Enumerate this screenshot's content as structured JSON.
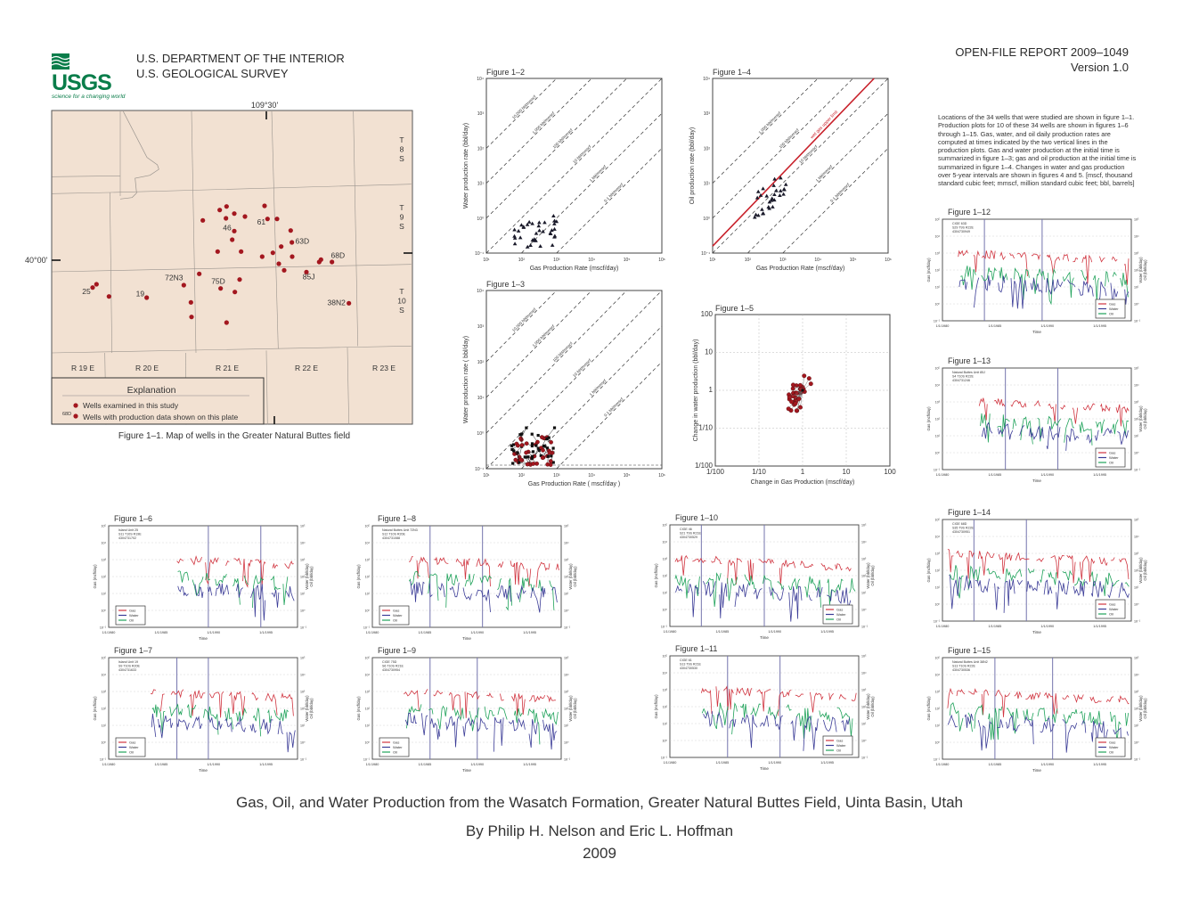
{
  "header": {
    "logo_text": "USGS",
    "logo_tagline": "science for a changing world",
    "agency_line1": "U.S. DEPARTMENT OF THE INTERIOR",
    "agency_line2": "U.S. GEOLOGICAL SURVEY",
    "report_number": "OPEN-FILE REPORT 2009–1049",
    "version": "Version 1.0"
  },
  "intro_text": "Locations of the 34 wells that were studied are shown in figure 1–1. Production plots for 10 of these 34 wells are shown in figures 1–6 through 1–15. Gas, water, and oil daily production rates are computed at times indicated by the two vertical lines in the production plots. Gas and water production at the initial time is summarized in figure 1–3; gas and oil production at the initial time is summarized in figure 1–4. Changes in water and gas production over 5-year intervals are shown in figures 4 and 5. [mscf, thousand standard cubic feet; mmscf, million standard cubic feet; bbl, barrels]",
  "map": {
    "caption": "Figure 1–1.  Map of wells in the Greater Natural Buttes field",
    "longitude_label": "109°30'",
    "latitude_label": "40°00'",
    "townships": [
      "T\n8\nS",
      "T\n9\nS",
      "T\n10\nS"
    ],
    "ranges": [
      "R 19 E",
      "R 20 E",
      "R 21 E",
      "R 22 E",
      "R 23 E"
    ],
    "well_labels": [
      "25",
      "19",
      "72N3",
      "75D",
      "46",
      "61",
      "63D",
      "68D",
      "85J",
      "38N2"
    ],
    "explanation": {
      "title": "Explanation",
      "item1": "Wells examined in this study",
      "item2": "Wells with production data shown on this plate",
      "symbol_label": "68D"
    },
    "colors": {
      "background": "#f2e1d2",
      "well": "#a3171f",
      "lines": "#9a948e"
    }
  },
  "scatter": {
    "fig2": {
      "title": "Figure 1–2",
      "xlabel": "Gas Production Rate (mscf/day)",
      "ylabel": "Water production rate (bbl/day)",
      "xticks": [
        "10¹",
        "10²",
        "10³",
        "10⁴",
        "10⁵",
        "10⁶"
      ],
      "yticks": [
        "10⁴",
        "10³",
        "10²",
        "10¹",
        "10⁰",
        "10⁻¹"
      ],
      "ratio_labels": [
        "10,000 bbl/mmscf",
        "1,000 bbl/mmscf",
        "100 bbl/mmscf",
        "10 bbl/mmscf",
        "1 bbl/mmscf",
        "0.1 bbl/mmscf"
      ]
    },
    "fig3": {
      "title": "Figure 1–3",
      "xlabel": "Gas Production Rate ( mscf/day )",
      "ylabel": "Water production rate ( bbl/day)",
      "xticks": [
        "10¹",
        "10²",
        "10³",
        "10⁴",
        "10⁵",
        "10⁶"
      ],
      "yticks": [
        "10⁴",
        "10³",
        "10²",
        "10¹",
        "10⁰",
        "10⁻¹"
      ],
      "ratio_labels": [
        "10,000 bbl/mmscf",
        "1,000 bbl/mmscf",
        "100 bbl/mmscf",
        "10 bbl/mmscf",
        "1 bbl/mmscf",
        "0.1 bbl/mmscf"
      ]
    },
    "fig4": {
      "title": "Figure 1–4",
      "xlabel": "Gas Production Rate (mscf/day)",
      "ylabel": "Oil production rate (bbl/day)",
      "xticks": [
        "10¹",
        "10²",
        "10³",
        "10⁴",
        "10⁵",
        "10⁶"
      ],
      "yticks": [
        "10⁴",
        "10³",
        "10²",
        "10¹",
        "10⁰",
        "10⁻¹"
      ],
      "ratio_labels": [
        "1,000 bbl/mmscf",
        "100 bbl/mmscf",
        "10 bbl/mmscf",
        "1 bbl/mmscf",
        "0.1 bbl/mmscf"
      ],
      "limit_label": "wet gas upper limit"
    },
    "fig5": {
      "title": "Figure 1–5",
      "xlabel": "Change in Gas Production (mscf/day)",
      "ylabel": "Change in water production (bbl/day)",
      "xticks": [
        "1/100",
        "1/10",
        "1",
        "10",
        "100"
      ],
      "yticks": [
        "100",
        "10",
        "1",
        "1/10",
        "1/100"
      ]
    },
    "colors": {
      "black_marker": "#1a1a2a",
      "red_marker": "#a3171f"
    }
  },
  "timeseries": {
    "legend": [
      "Gas",
      "Water",
      "Oil"
    ],
    "xticks": [
      "1/1/1980",
      "1/1/1985",
      "1/1/1990",
      "1/1/1995"
    ],
    "yticks": [
      "10⁵",
      "10⁴",
      "10³",
      "10²",
      "10¹",
      "10⁰",
      "10⁻¹"
    ],
    "xlabel": "Time",
    "ylabel_left": "Gas (mcf/day)",
    "ylabel_right1": "Water (bbl/day)",
    "ylabel_right2": "Oil (bbl/day)",
    "colors": {
      "gas": "#d0343f",
      "water": "#3b3c97",
      "oil": "#1fa25a",
      "marker_line": "#7474ad"
    },
    "plots": [
      {
        "title": "Figure 1–6",
        "well": [
          "Island Unit 25",
          "S11 T10S R19E",
          "4304731702"
        ]
      },
      {
        "title": "Figure 1–7",
        "well": [
          "Island Unit 19",
          "S9 T10S R20E",
          "4304731633"
        ]
      },
      {
        "title": "Figure 1–8",
        "well": [
          "Natural Buttes Unit 72N3",
          "S12 T10S R20E",
          "4304731088"
        ]
      },
      {
        "title": "Figure 1–9",
        "well": [
          "CIGE 75D",
          "S6 T10S R21E",
          "4304730954"
        ]
      },
      {
        "title": "Figure 1–10",
        "well": [
          "CIGE 46",
          "S21 T9S R21E",
          "4304730529"
        ]
      },
      {
        "title": "Figure 1–11",
        "well": [
          "CIGE 61",
          "S13 T9S R21E",
          "4304730530"
        ]
      },
      {
        "title": "Figure 1–12",
        "well": [
          "CIGE 63D",
          "S29 T9S R22E",
          "4304730949"
        ]
      },
      {
        "title": "Figure 1–13",
        "well": [
          "Natural Buttes Unit 85J",
          "S4 T10S R22E",
          "4304731246"
        ]
      },
      {
        "title": "Figure 1–14",
        "well": [
          "CIGE 68D",
          "S35 T9S R22E",
          "4304730951"
        ]
      },
      {
        "title": "Figure 1–15",
        "well": [
          "Natural Buttes Unit 38N2",
          "S13 T10S R22E",
          "4304730536"
        ]
      }
    ]
  },
  "footer": {
    "title": "Gas, Oil, and Water Production from the Wasatch Formation, Greater Natural Buttes Field, Uinta Basin, Utah",
    "authors": "By Philip H. Nelson and Eric L. Hoffman",
    "year": "2009"
  }
}
